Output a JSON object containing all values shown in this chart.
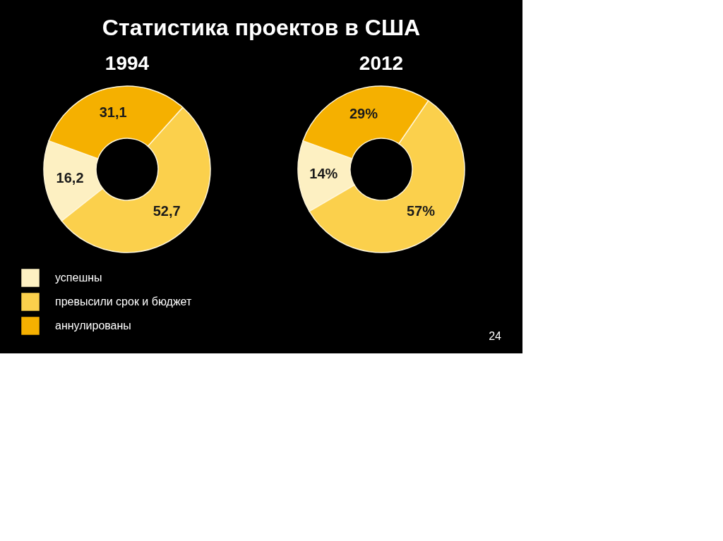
{
  "chart_data": [
    {
      "type": "donut",
      "title": "Статистика проектов в США",
      "subtitle": "1994",
      "categories": [
        "успешны",
        "превысили срок и бюджет",
        "аннулированы"
      ],
      "values": [
        16.2,
        52.7,
        31.1
      ],
      "colors": [
        "#fdf0c2",
        "#fbd04c",
        "#f5b000"
      ],
      "value_labels": [
        "16,2",
        "52,7",
        "31,1"
      ],
      "legend": "bottom"
    },
    {
      "type": "donut",
      "subtitle": "2012",
      "categories": [
        null,
        null,
        null
      ],
      "values": [
        14,
        57,
        29
      ],
      "colors": [
        "#fdf0c2",
        "#fbd04c",
        "#f5b000"
      ],
      "value_labels": [
        "14%",
        "57%",
        "29%"
      ],
      "annotations": [
        "24"
      ]
    }
  ]
}
